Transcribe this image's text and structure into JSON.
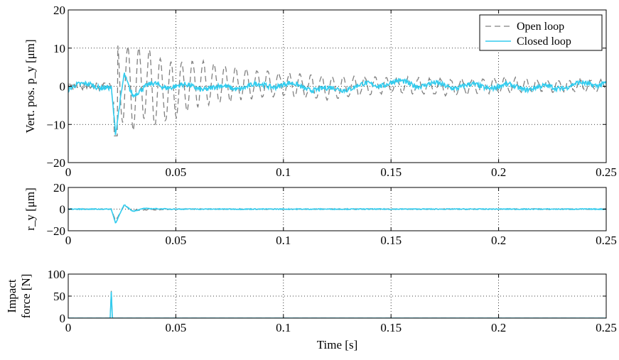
{
  "chart_data": [
    {
      "type": "line",
      "xlim": [
        0,
        0.25
      ],
      "ylim": [
        -20,
        20
      ],
      "xticks": [
        "0",
        "0.05",
        "0.1",
        "0.15",
        "0.2",
        "0.25"
      ],
      "yticks": [
        "20",
        "10",
        "0",
        "−10",
        "−20"
      ],
      "ylabel": "Vert. pos. p_y [μm]",
      "grid": true,
      "legend": {
        "placement": "top-right",
        "entries": [
          "Open loop",
          "Closed loop"
        ]
      },
      "series": [
        {
          "name": "Open loop",
          "color": "#808080",
          "style": "dashed",
          "x": [
            0,
            0.01,
            0.02,
            0.022,
            0.025,
            0.03,
            0.035,
            0.04,
            0.05,
            0.06,
            0.08,
            0.1,
            0.12,
            0.15,
            0.18,
            0.2,
            0.22,
            0.25
          ],
          "y": [
            0,
            1,
            0,
            -13,
            11,
            -10,
            10,
            -9,
            -7,
            5,
            4,
            3,
            -3,
            2,
            -2,
            2,
            1,
            1
          ],
          "envelope": [
            0,
            0,
            0,
            13,
            11,
            10,
            10,
            9,
            7,
            6,
            4,
            3,
            3,
            2,
            2,
            2,
            1.5,
            1.5
          ]
        },
        {
          "name": "Closed loop",
          "color": "#33ccee",
          "style": "solid",
          "x": [
            0,
            0.01,
            0.02,
            0.022,
            0.026,
            0.03,
            0.04,
            0.05,
            0.07,
            0.1,
            0.12,
            0.15,
            0.18,
            0.2,
            0.22,
            0.25
          ],
          "y": [
            -1,
            1,
            -1,
            -13,
            3.5,
            -2,
            0.5,
            0,
            -0.5,
            0.5,
            -1,
            1,
            0,
            0,
            -0.5,
            1
          ]
        }
      ]
    },
    {
      "type": "line",
      "xlim": [
        0,
        0.25
      ],
      "ylim": [
        -20,
        20
      ],
      "xticks": [
        "0",
        "0.05",
        "0.1",
        "0.15",
        "0.2",
        "0.25"
      ],
      "yticks": [
        "20",
        "0",
        "−20"
      ],
      "ylabel": "r_y [μm]",
      "grid": true,
      "series": [
        {
          "color": "#808080",
          "style": "dashed",
          "x": [
            0,
            0.02,
            0.022,
            0.026,
            0.03,
            0.05,
            0.25
          ],
          "y": [
            0,
            0,
            -11,
            3,
            -1,
            0,
            0
          ]
        },
        {
          "color": "#33ccee",
          "style": "solid",
          "x": [
            0,
            0.02,
            0.022,
            0.026,
            0.03,
            0.035,
            0.05,
            0.25
          ],
          "y": [
            0,
            0,
            -13,
            4,
            -2,
            0.5,
            0,
            0
          ]
        }
      ]
    },
    {
      "type": "line",
      "xlim": [
        0,
        0.25
      ],
      "ylim": [
        0,
        100
      ],
      "xticks": [
        "0",
        "0.05",
        "0.1",
        "0.15",
        "0.2",
        "0.25"
      ],
      "yticks": [
        "100",
        "50",
        "0"
      ],
      "ylabel": [
        "Impact",
        "force [N]"
      ],
      "xlabel": "Time [s]",
      "grid": true,
      "series": [
        {
          "color": "#808080",
          "style": "dashed",
          "x": [
            0,
            0.0195,
            0.02,
            0.0205,
            0.25
          ],
          "y": [
            0,
            0,
            62,
            0,
            0
          ]
        },
        {
          "color": "#33ccee",
          "style": "solid",
          "x": [
            0,
            0.0195,
            0.02,
            0.0205,
            0.25
          ],
          "y": [
            0,
            0,
            60,
            0,
            0
          ]
        }
      ]
    }
  ]
}
